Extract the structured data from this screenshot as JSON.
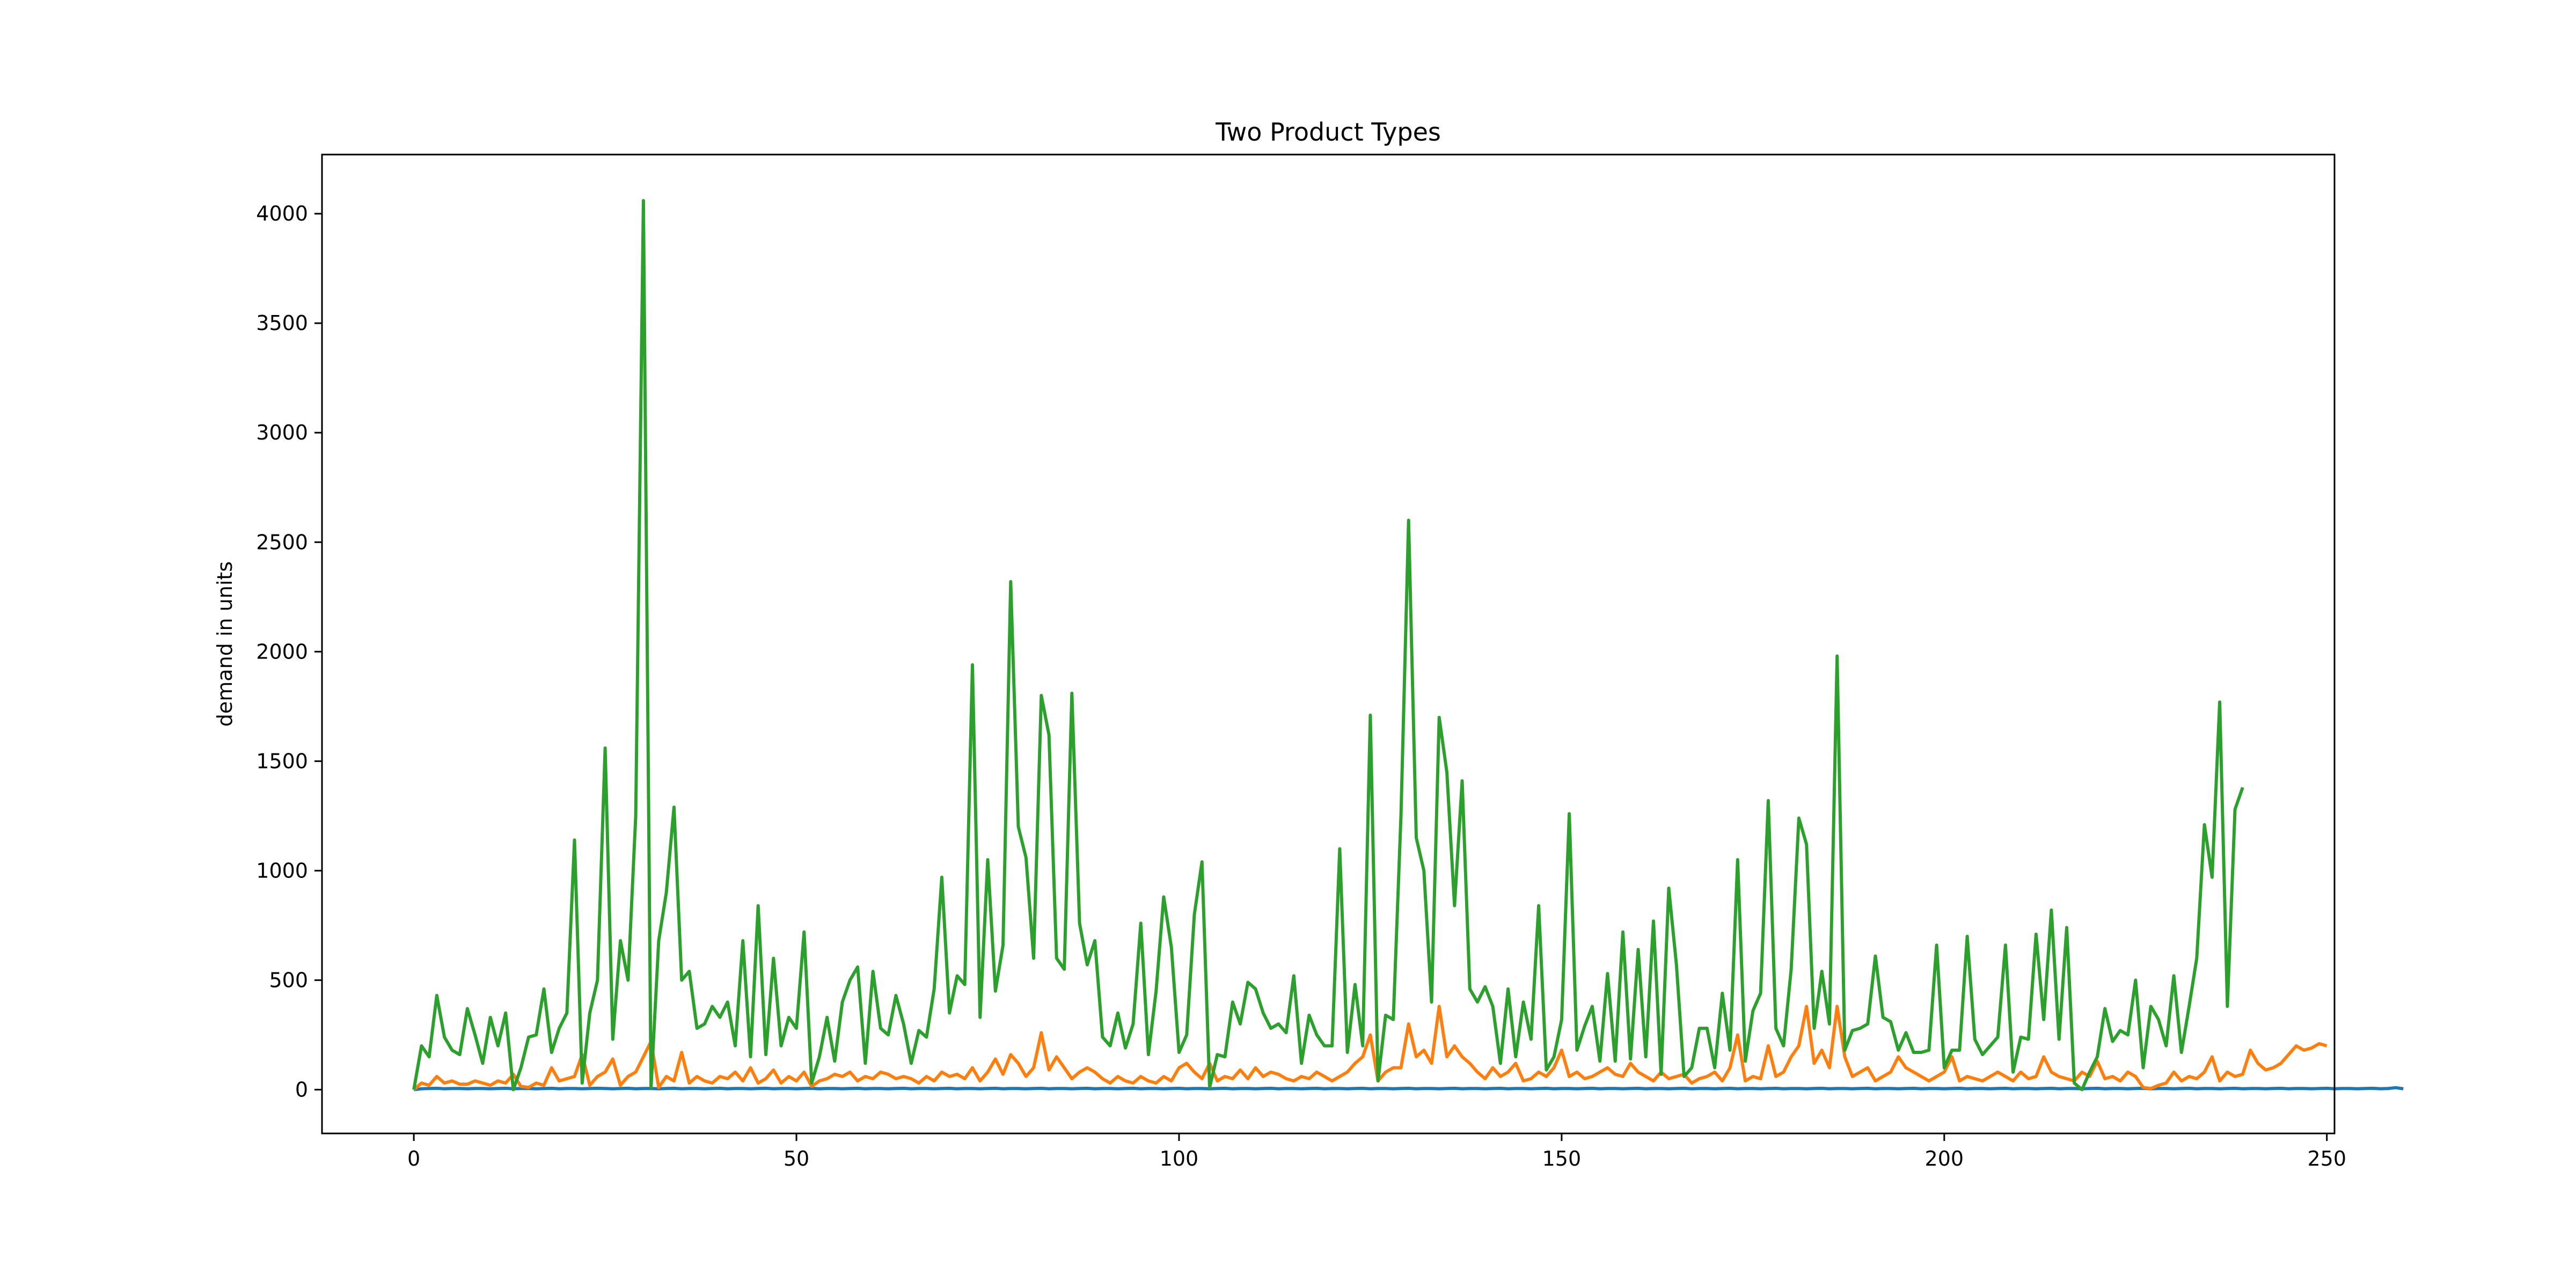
{
  "chart_data": {
    "type": "line",
    "title": "Two Product Types",
    "xlabel": "",
    "ylabel": "demand in units",
    "xlim": [
      -12,
      251
    ],
    "ylim": [
      -200,
      4270
    ],
    "xticks": [
      0,
      50,
      100,
      150,
      200,
      250
    ],
    "yticks": [
      0,
      500,
      1000,
      1500,
      2000,
      2500,
      3000,
      3500,
      4000
    ],
    "grid": false,
    "legend": "none",
    "series": [
      {
        "color": "#1f77b4",
        "values": [
          0,
          4,
          5,
          6,
          4,
          5,
          5,
          4,
          5,
          5,
          4,
          5,
          6,
          4,
          5,
          5,
          4,
          5,
          6,
          4,
          5,
          5,
          4,
          5,
          6,
          5,
          4,
          5,
          6,
          4,
          5,
          5,
          4,
          5,
          6,
          4,
          5,
          5,
          4,
          5,
          6,
          4,
          5,
          5,
          4,
          5,
          6,
          4,
          5,
          5,
          4,
          5,
          6,
          4,
          5,
          5,
          4,
          5,
          6,
          4,
          5,
          5,
          4,
          5,
          6,
          4,
          5,
          5,
          4,
          5,
          6,
          4,
          5,
          5,
          4,
          5,
          6,
          4,
          5,
          5,
          4,
          5,
          6,
          4,
          5,
          5,
          4,
          5,
          6,
          4,
          5,
          5,
          4,
          5,
          6,
          4,
          5,
          5,
          4,
          5,
          6,
          4,
          5,
          5,
          4,
          5,
          6,
          4,
          5,
          5,
          4,
          5,
          6,
          4,
          5,
          5,
          4,
          5,
          6,
          4,
          5,
          5,
          4,
          5,
          6,
          4,
          5,
          5,
          4,
          5,
          6,
          4,
          5,
          5,
          4,
          5,
          6,
          4,
          5,
          5,
          4,
          5,
          6,
          4,
          5,
          5,
          4,
          5,
          6,
          4,
          5,
          5,
          4,
          5,
          6,
          4,
          5,
          5,
          4,
          5,
          6,
          4,
          5,
          5,
          4,
          5,
          6,
          4,
          5,
          5,
          4,
          5,
          6,
          4,
          5,
          5,
          4,
          5,
          6,
          4,
          5,
          5,
          4,
          5,
          6,
          4,
          5,
          5,
          4,
          5,
          6,
          4,
          5,
          5,
          4,
          5,
          6,
          4,
          5,
          5,
          4,
          5,
          6,
          4,
          5,
          5,
          4,
          5,
          6,
          4,
          5,
          5,
          4,
          5,
          6,
          4,
          5,
          5,
          4,
          5,
          6,
          4,
          5,
          5,
          4,
          5,
          6,
          4,
          5,
          5,
          4,
          5,
          6,
          4,
          5,
          5,
          4,
          5,
          6,
          4,
          5,
          5,
          4,
          5,
          6,
          4,
          5,
          5,
          4,
          5,
          6,
          4,
          5,
          5,
          4,
          5,
          6,
          4,
          5,
          9,
          4
        ]
      },
      {
        "color": "#ff7f0e",
        "values": [
          0,
          30,
          20,
          60,
          30,
          40,
          25,
          25,
          40,
          30,
          20,
          40,
          30,
          70,
          15,
          10,
          30,
          20,
          100,
          40,
          50,
          60,
          160,
          20,
          60,
          80,
          140,
          20,
          60,
          80,
          150,
          220,
          10,
          60,
          40,
          170,
          30,
          60,
          40,
          30,
          60,
          50,
          80,
          40,
          100,
          30,
          50,
          90,
          30,
          60,
          40,
          80,
          15,
          40,
          50,
          70,
          60,
          80,
          40,
          60,
          50,
          80,
          70,
          50,
          60,
          50,
          30,
          60,
          40,
          80,
          60,
          70,
          50,
          100,
          40,
          80,
          140,
          70,
          160,
          120,
          60,
          100,
          260,
          90,
          150,
          100,
          50,
          80,
          100,
          80,
          50,
          30,
          60,
          40,
          30,
          60,
          40,
          30,
          60,
          40,
          100,
          120,
          80,
          50,
          120,
          40,
          60,
          50,
          90,
          50,
          100,
          60,
          80,
          70,
          50,
          40,
          60,
          50,
          80,
          60,
          40,
          60,
          80,
          120,
          150,
          250,
          40,
          80,
          100,
          100,
          300,
          150,
          180,
          120,
          380,
          150,
          200,
          150,
          120,
          80,
          50,
          100,
          60,
          80,
          120,
          40,
          50,
          80,
          60,
          100,
          180,
          60,
          80,
          50,
          60,
          80,
          100,
          70,
          60,
          120,
          80,
          60,
          40,
          80,
          50,
          60,
          70,
          30,
          50,
          60,
          80,
          40,
          100,
          250,
          40,
          60,
          50,
          200,
          60,
          80,
          150,
          200,
          380,
          120,
          180,
          100,
          380,
          150,
          60,
          80,
          100,
          40,
          60,
          80,
          150,
          100,
          80,
          60,
          40,
          60,
          80,
          150,
          40,
          60,
          50,
          40,
          60,
          80,
          60,
          40,
          80,
          50,
          60,
          150,
          80,
          60,
          50,
          40,
          80,
          60,
          130,
          50,
          60,
          40,
          80,
          60,
          10,
          5,
          20,
          30,
          80,
          40,
          60,
          50,
          80,
          150,
          40,
          80,
          60,
          70,
          180,
          120,
          90,
          100,
          120,
          160,
          200,
          180,
          190,
          210,
          200
        ]
      },
      {
        "color": "#2ca02c",
        "values": [
          0,
          200,
          150,
          430,
          240,
          180,
          160,
          370,
          250,
          120,
          330,
          200,
          350,
          0,
          100,
          240,
          250,
          460,
          170,
          280,
          350,
          1140,
          30,
          350,
          500,
          1560,
          230,
          680,
          500,
          1250,
          4060,
          10,
          680,
          900,
          1290,
          500,
          540,
          280,
          300,
          380,
          330,
          400,
          200,
          680,
          150,
          840,
          160,
          600,
          200,
          330,
          280,
          720,
          30,
          150,
          330,
          130,
          400,
          500,
          560,
          120,
          540,
          280,
          250,
          430,
          300,
          120,
          270,
          240,
          460,
          970,
          350,
          520,
          480,
          1940,
          330,
          1050,
          450,
          660,
          2320,
          1200,
          1060,
          600,
          1800,
          1620,
          600,
          550,
          1810,
          760,
          570,
          680,
          240,
          200,
          350,
          190,
          300,
          760,
          160,
          450,
          880,
          650,
          170,
          250,
          800,
          1040,
          10,
          160,
          150,
          400,
          300,
          490,
          460,
          350,
          280,
          300,
          260,
          520,
          120,
          340,
          250,
          200,
          200,
          1100,
          170,
          480,
          200,
          1710,
          40,
          340,
          320,
          1250,
          2600,
          1150,
          1000,
          400,
          1700,
          1450,
          840,
          1410,
          460,
          400,
          470,
          380,
          120,
          460,
          150,
          400,
          230,
          840,
          90,
          150,
          320,
          1260,
          180,
          290,
          380,
          130,
          530,
          130,
          720,
          140,
          640,
          150,
          770,
          70,
          920,
          570,
          60,
          100,
          280,
          280,
          100,
          440,
          180,
          1050,
          130,
          360,
          440,
          1320,
          280,
          200,
          550,
          1240,
          1120,
          280,
          540,
          300,
          1980,
          180,
          270,
          280,
          300,
          610,
          330,
          310,
          180,
          260,
          170,
          170,
          180,
          660,
          100,
          180,
          180,
          700,
          230,
          160,
          200,
          240,
          660,
          80,
          240,
          230,
          710,
          320,
          820,
          230,
          740,
          30,
          0,
          80,
          150,
          370,
          220,
          270,
          250,
          500,
          100,
          380,
          320,
          200,
          520,
          170,
          380,
          600,
          1210,
          970,
          1770,
          380,
          1280,
          1380
        ]
      }
    ]
  }
}
